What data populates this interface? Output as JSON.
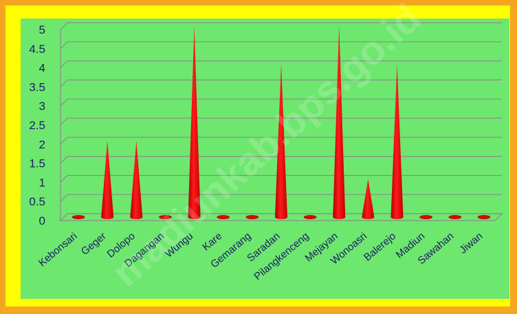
{
  "chart_data": {
    "type": "bar",
    "title": "",
    "xlabel": "",
    "ylabel": "",
    "ylim": [
      0,
      5
    ],
    "yticks": [
      "0",
      "0.5",
      "1",
      "1.5",
      "2",
      "2.5",
      "3",
      "3.5",
      "4",
      "4.5",
      "5"
    ],
    "categories": [
      "Kebonsari",
      "Geger",
      "Dolopo",
      "Dagangan",
      "Wungu",
      "Kare",
      "Gemarang",
      "Saradan",
      "Pilangkenceng",
      "Mejayan",
      "Wonoasri",
      "Balerejo",
      "Madiun",
      "Sawahan",
      "Jiwan"
    ],
    "values": [
      0,
      2,
      2,
      0,
      5,
      0,
      0,
      4,
      0,
      5,
      1,
      4,
      0,
      0,
      0
    ],
    "grid": true,
    "legend": "none",
    "colors": {
      "bar": "#ff0000",
      "background": "#6ee76e",
      "border": "#ffff00",
      "text": "#1b1b66"
    },
    "watermark": "madiunkab.bps.go.id"
  }
}
